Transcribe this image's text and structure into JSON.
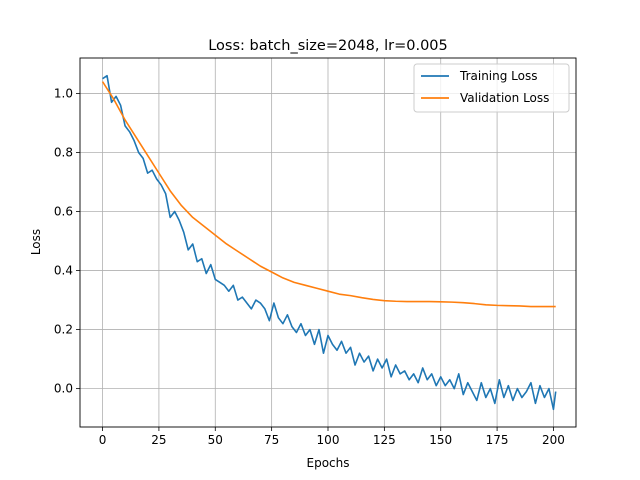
{
  "chart_data": {
    "type": "line",
    "title": "Loss: batch_size=2048, lr=0.005",
    "xlabel": "Epochs",
    "ylabel": "Loss",
    "xlim": [
      -10,
      210
    ],
    "ylim": [
      -0.13,
      1.12
    ],
    "xticks": [
      0,
      25,
      50,
      75,
      100,
      125,
      150,
      175,
      200
    ],
    "yticks": [
      0.0,
      0.2,
      0.4,
      0.6,
      0.8,
      1.0
    ],
    "xtick_labels": [
      "0",
      "25",
      "50",
      "75",
      "100",
      "125",
      "150",
      "175",
      "200"
    ],
    "ytick_labels": [
      "0.0",
      "0.2",
      "0.4",
      "0.6",
      "0.8",
      "1.0"
    ],
    "grid": true,
    "legend_position": "top-right",
    "colors": {
      "training": "#1f77b4",
      "validation": "#ff7f0e"
    },
    "series": [
      {
        "name": "Training Loss",
        "color": "#1f77b4",
        "x": [
          0,
          2,
          4,
          6,
          8,
          10,
          12,
          14,
          16,
          18,
          20,
          22,
          24,
          26,
          28,
          30,
          32,
          34,
          36,
          38,
          40,
          42,
          44,
          46,
          48,
          50,
          52,
          54,
          56,
          58,
          60,
          62,
          64,
          66,
          68,
          70,
          72,
          74,
          76,
          78,
          80,
          82,
          84,
          86,
          88,
          90,
          92,
          94,
          96,
          98,
          100,
          102,
          104,
          106,
          108,
          110,
          112,
          114,
          116,
          118,
          120,
          122,
          124,
          126,
          128,
          130,
          132,
          134,
          136,
          138,
          140,
          142,
          144,
          146,
          148,
          150,
          152,
          154,
          156,
          158,
          160,
          162,
          164,
          166,
          168,
          170,
          172,
          174,
          176,
          178,
          180,
          182,
          184,
          186,
          188,
          190,
          192,
          194,
          196,
          198,
          200,
          201
        ],
        "y": [
          1.05,
          1.06,
          0.97,
          0.99,
          0.96,
          0.89,
          0.87,
          0.84,
          0.8,
          0.78,
          0.73,
          0.74,
          0.71,
          0.69,
          0.66,
          0.58,
          0.6,
          0.57,
          0.53,
          0.47,
          0.49,
          0.43,
          0.44,
          0.39,
          0.42,
          0.37,
          0.36,
          0.35,
          0.33,
          0.35,
          0.3,
          0.31,
          0.29,
          0.27,
          0.3,
          0.29,
          0.27,
          0.23,
          0.29,
          0.24,
          0.22,
          0.25,
          0.21,
          0.19,
          0.22,
          0.18,
          0.2,
          0.15,
          0.2,
          0.12,
          0.18,
          0.15,
          0.13,
          0.16,
          0.12,
          0.14,
          0.08,
          0.12,
          0.09,
          0.11,
          0.06,
          0.1,
          0.07,
          0.1,
          0.04,
          0.08,
          0.05,
          0.06,
          0.03,
          0.05,
          0.02,
          0.07,
          0.03,
          0.05,
          0.01,
          0.04,
          0.01,
          0.03,
          0.0,
          0.05,
          -0.02,
          0.02,
          -0.01,
          -0.04,
          0.02,
          -0.03,
          0.0,
          -0.05,
          0.03,
          -0.03,
          0.01,
          -0.04,
          0.0,
          -0.03,
          -0.01,
          0.02,
          -0.05,
          0.01,
          -0.03,
          0.0,
          -0.07,
          -0.01
        ]
      },
      {
        "name": "Validation Loss",
        "color": "#ff7f0e",
        "x": [
          0,
          5,
          10,
          15,
          20,
          25,
          30,
          35,
          40,
          45,
          50,
          55,
          60,
          65,
          70,
          75,
          80,
          85,
          90,
          95,
          100,
          105,
          110,
          115,
          120,
          125,
          130,
          135,
          140,
          145,
          150,
          155,
          160,
          165,
          170,
          175,
          180,
          185,
          190,
          195,
          200,
          201
        ],
        "y": [
          1.04,
          0.98,
          0.91,
          0.85,
          0.79,
          0.73,
          0.67,
          0.62,
          0.58,
          0.55,
          0.52,
          0.49,
          0.465,
          0.44,
          0.415,
          0.395,
          0.375,
          0.36,
          0.35,
          0.34,
          0.33,
          0.32,
          0.315,
          0.308,
          0.302,
          0.298,
          0.296,
          0.295,
          0.295,
          0.295,
          0.294,
          0.293,
          0.291,
          0.288,
          0.284,
          0.282,
          0.281,
          0.28,
          0.278,
          0.278,
          0.278,
          0.278
        ]
      }
    ]
  }
}
